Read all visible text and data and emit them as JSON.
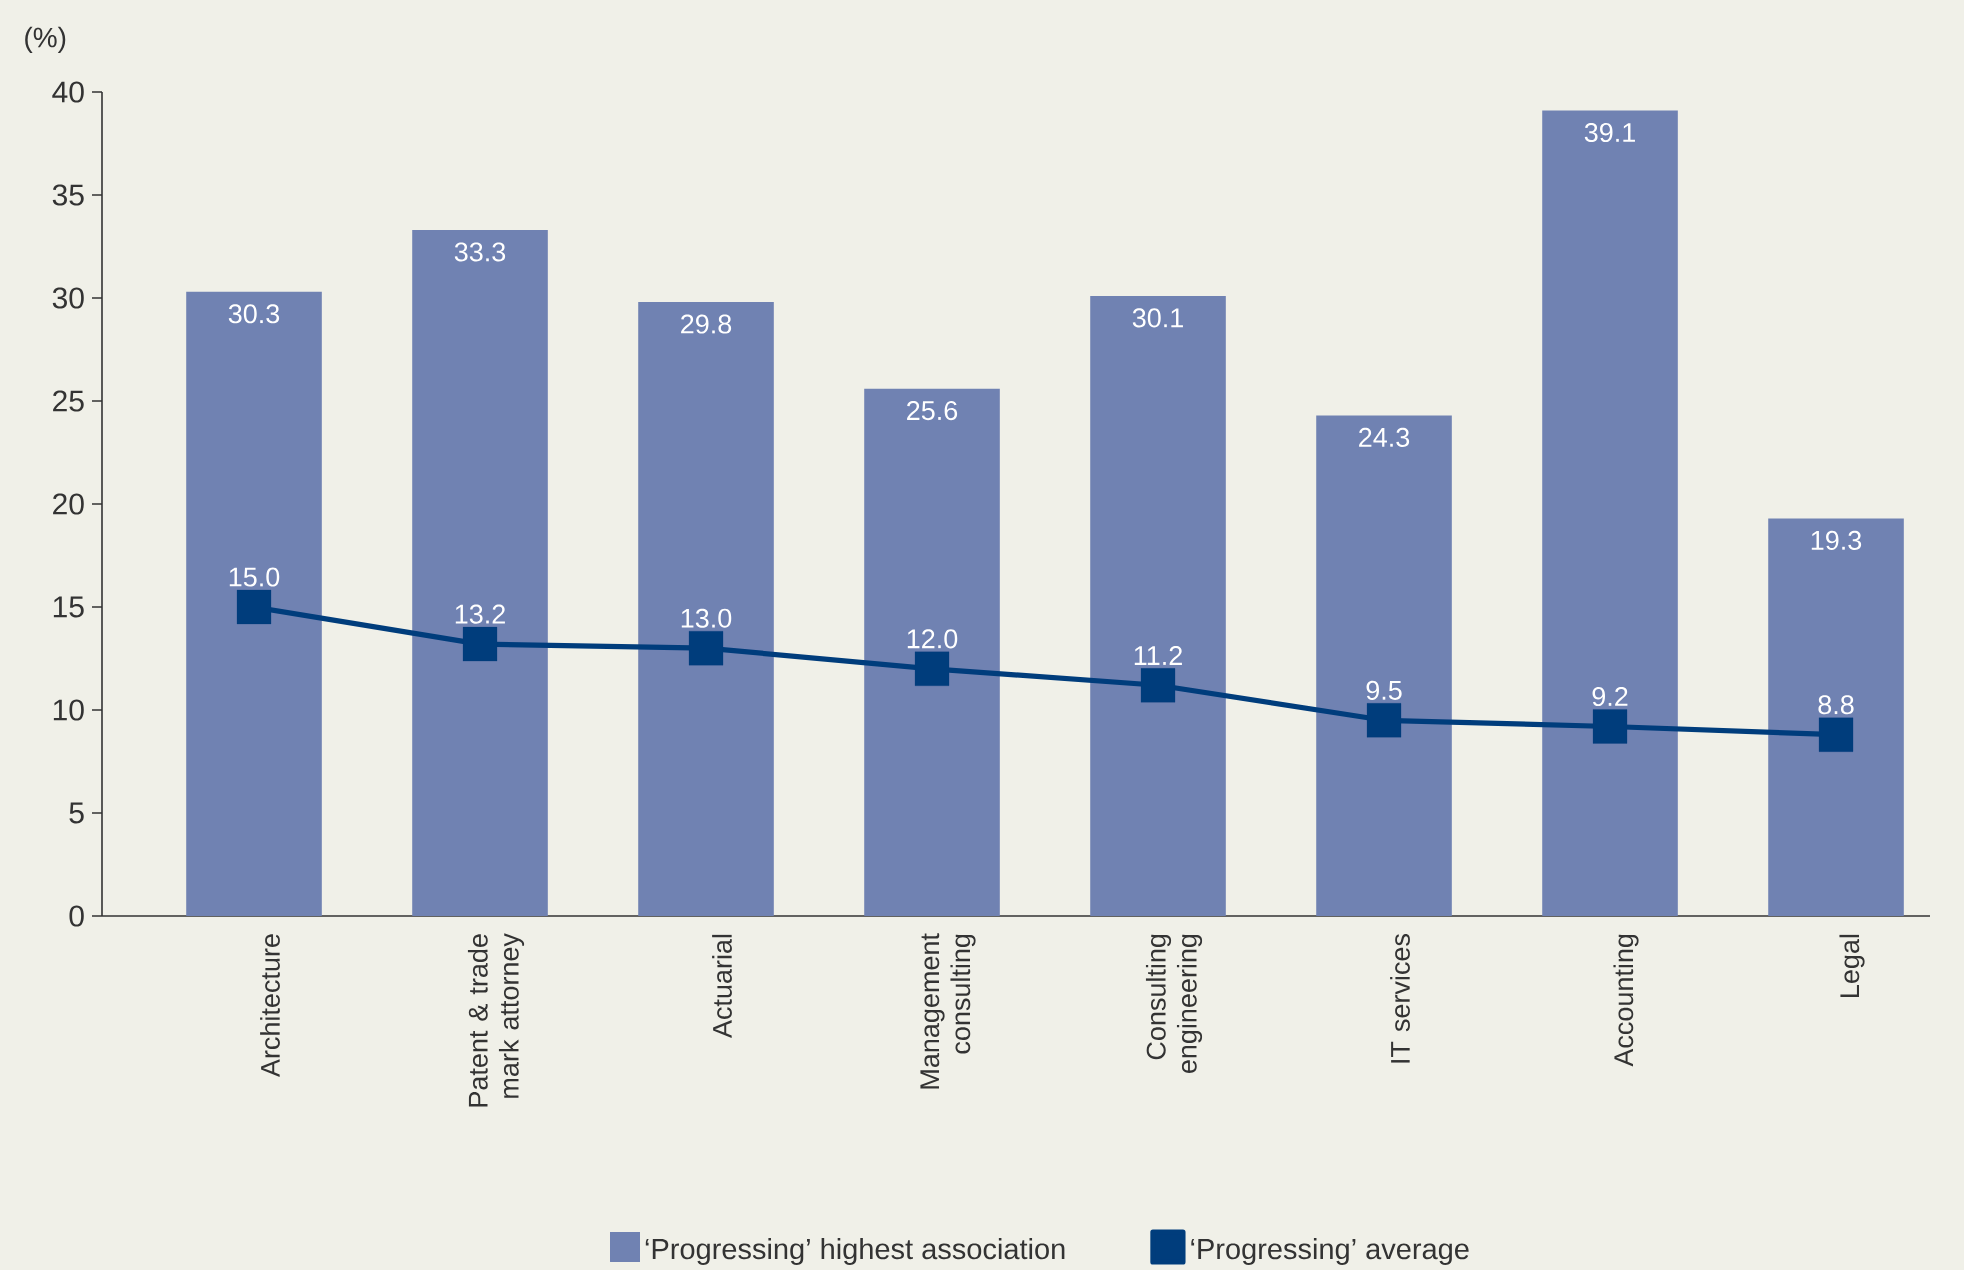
{
  "chart_data": {
    "type": "bar",
    "ylabel": "(%)",
    "categories": [
      "Architecture",
      "Patent & trade mark attorney",
      "Actuarial",
      "Management consulting",
      "Consulting engineering",
      "IT services",
      "Accounting",
      "Legal"
    ],
    "series": [
      {
        "name": "‘Progressing’ highest association",
        "color": "#7082b2",
        "values": [
          30.3,
          33.3,
          29.8,
          25.6,
          30.1,
          24.3,
          39.1,
          19.3
        ],
        "value_labels": [
          "30.3",
          "33.3",
          "29.8",
          "25.6",
          "30.1",
          "24.3",
          "39.1",
          "19.3"
        ]
      },
      {
        "name": "‘Progressing’ average",
        "type": "line",
        "color": "#003d7c",
        "marker": "square",
        "values": [
          15.0,
          13.2,
          13.0,
          12.0,
          11.2,
          9.5,
          9.2,
          8.8
        ],
        "value_labels": [
          "15.0",
          "13.2",
          "13.0",
          "12.0",
          "11.2",
          "9.5",
          "9.2",
          "8.8"
        ]
      }
    ],
    "ylim": [
      0,
      40
    ],
    "yticks": [
      0,
      5,
      10,
      15,
      20,
      25,
      30,
      35,
      40
    ],
    "legend": "bottom"
  }
}
